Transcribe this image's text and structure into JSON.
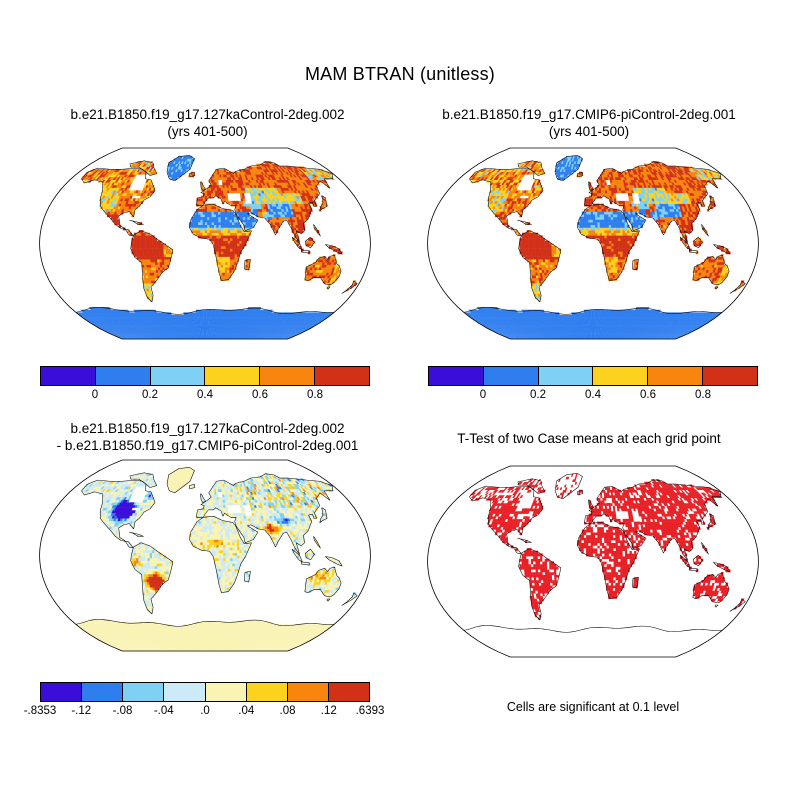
{
  "header": {
    "title": "MAM BTRAN (unitless)"
  },
  "panels": {
    "case1": {
      "title_line1": "b.e21.B1850.f19_g17.127kaControl-2deg.002",
      "title_line2": "(yrs 401-500)"
    },
    "case2": {
      "title_line1": "b.e21.B1850.f19_g17.CMIP6-piControl-2deg.001",
      "title_line2": "(yrs 401-500)"
    },
    "diff": {
      "title_line1": "b.e21.B1850.f19_g17.127kaControl-2deg.002",
      "title_line2": "- b.e21.B1850.f19_g17.CMIP6-piControl-2deg.001"
    },
    "ttest": {
      "title": "T-Test of two Case means at each grid point",
      "caption": "Cells are significant at 0.1 level"
    }
  },
  "colorbars": {
    "btran": {
      "colors": [
        "#3a0dd8",
        "#2f7ef0",
        "#7ed0f4",
        "#fdd21f",
        "#f8850e",
        "#d23118"
      ],
      "labels": [
        "0",
        "0.2",
        "0.4",
        "0.6",
        "0.8"
      ]
    },
    "diff": {
      "colors": [
        "#3a0dd8",
        "#2f7ef0",
        "#7ed0f4",
        "#cceaf8",
        "#f9f3b4",
        "#fdd21f",
        "#f8850e",
        "#d23118"
      ],
      "labels": [
        "-.8353",
        "-.12",
        "-.08",
        "-.04",
        ".0",
        ".04",
        ".08",
        ".12",
        ".6393"
      ]
    }
  },
  "ttest_color": "#e82127",
  "chart_data": [
    {
      "type": "heatmap",
      "subtype": "global-map",
      "projection": "robinson-like",
      "title": "b.e21.B1850.f19_g17.127kaControl-2deg.002 (yrs 401-500)",
      "variable": "MAM BTRAN (unitless)",
      "levels": [
        0,
        0.2,
        0.4,
        0.6,
        0.8
      ],
      "palette": [
        "#3a0dd8",
        "#2f7ef0",
        "#7ed0f4",
        "#fdd21f",
        "#f8850e",
        "#d23118"
      ],
      "pattern": "Land-only field. Ice sheets (Greenland, Antarctica) and deserts (Sahara, Arabia, central Asia, Tibet) 0-0.4 (blues); humid tropics (Amazon, Congo, SE Asia) and boreal forests 0.8-1 (red); mid-latitudes mixed yellow/orange; ocean blank white."
    },
    {
      "type": "heatmap",
      "subtype": "global-map",
      "projection": "robinson-like",
      "title": "b.e21.B1850.f19_g17.CMIP6-piControl-2deg.001 (yrs 401-500)",
      "variable": "MAM BTRAN (unitless)",
      "levels": [
        0,
        0.2,
        0.4,
        0.6,
        0.8
      ],
      "palette": [
        "#3a0dd8",
        "#2f7ef0",
        "#7ed0f4",
        "#fdd21f",
        "#f8850e",
        "#d23118"
      ],
      "pattern": "Nearly identical spatial distribution to the 127kaControl case: blue deserts and ice sheets, red humid tropics and boreal forests."
    },
    {
      "type": "heatmap",
      "subtype": "global-map-difference",
      "projection": "robinson-like",
      "title": "b.e21.B1850.f19_g17.127kaControl-2deg.002 - b.e21.B1850.f19_g17.CMIP6-piControl-2deg.001",
      "variable": "MAM BTRAN difference (unitless)",
      "min": -0.8353,
      "max": 0.6393,
      "levels": [
        -0.12,
        -0.08,
        -0.04,
        0,
        0.04,
        0.08,
        0.12
      ],
      "palette": [
        "#3a0dd8",
        "#2f7ef0",
        "#7ed0f4",
        "#cceaf8",
        "#f9f3b4",
        "#fdd21f",
        "#f8850e",
        "#d23118"
      ],
      "pattern": "Mostly small differences (pale blue/pale yellow speckle). Strong negative (indigo/blue) blob over central North America; strong positive (red/orange) blob over southeastern South America; scattered orange over NW India and Siberia; Antarctica uniform pale yellow."
    },
    {
      "type": "heatmap",
      "subtype": "global-map-significance",
      "projection": "robinson-like",
      "title": "T-Test of two Case means at each grid point",
      "significance_level": 0.1,
      "significant_color": "#e82127",
      "not_significant_color": "#ffffff",
      "pattern": "Most vegetated land cells significant (solid red) with scattered white non-significant cells; Greenland and Antarctica not significant (white)."
    }
  ]
}
